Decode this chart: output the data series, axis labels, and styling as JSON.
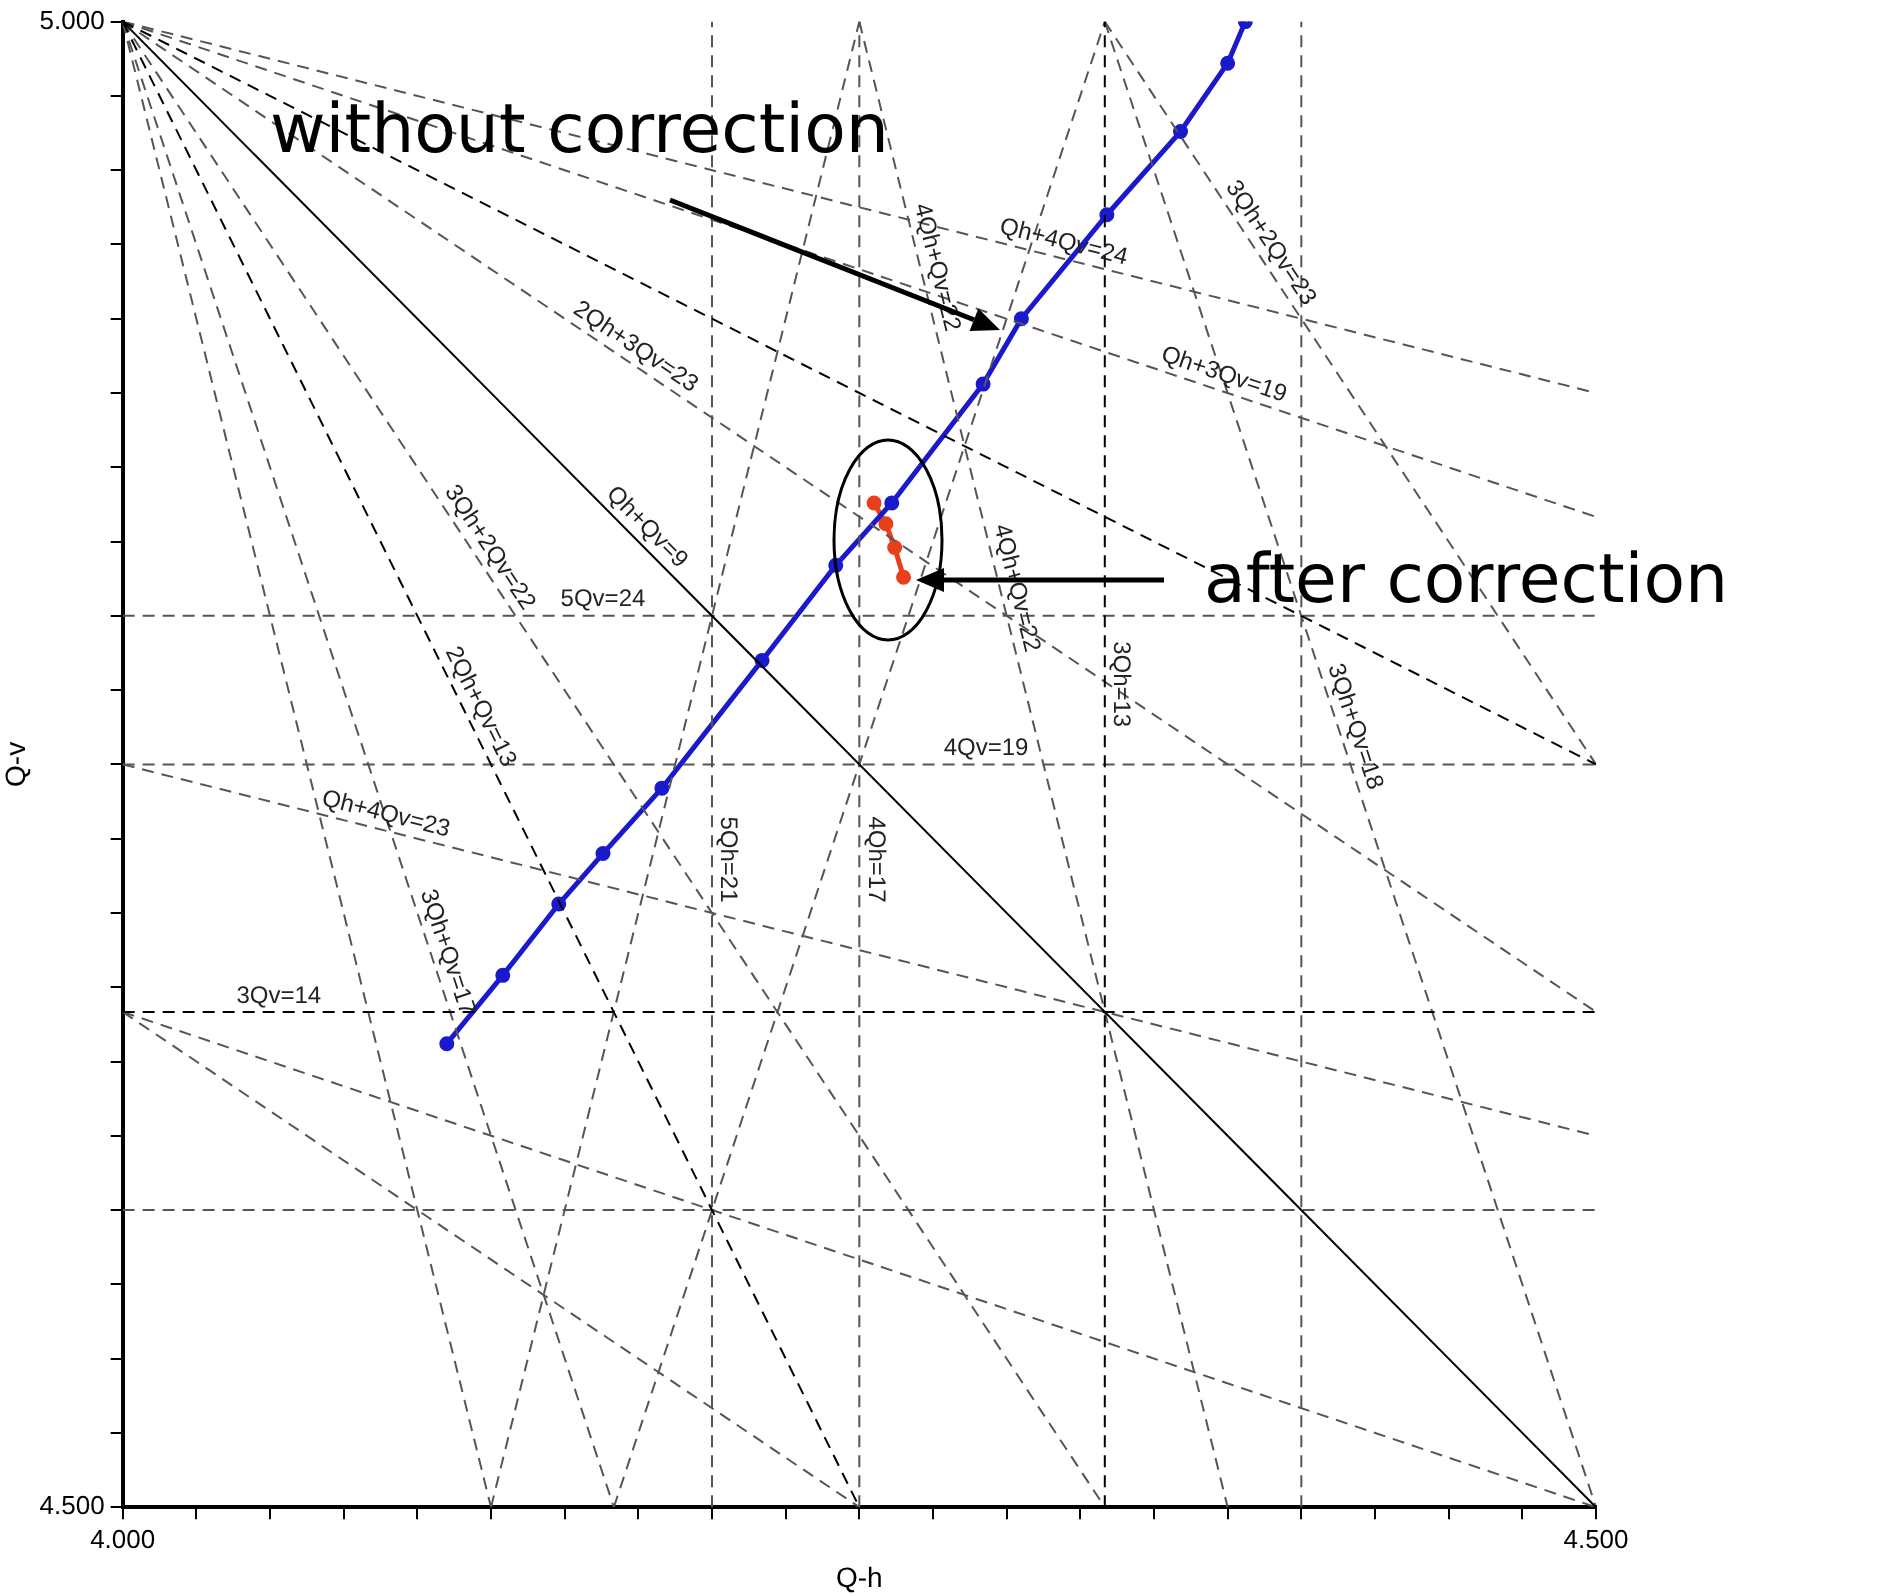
{
  "chart_data": {
    "type": "line",
    "xlabel": "Q-h",
    "ylabel": "Q-v",
    "xlim": [
      4,
      4.5
    ],
    "ylim": [
      4.5,
      5
    ],
    "xticks": [
      {
        "value": 4,
        "label": "4.000"
      },
      {
        "value": 4.025,
        "label": null
      },
      {
        "value": 4.05,
        "label": null
      },
      {
        "value": 4.075,
        "label": null
      },
      {
        "value": 4.1,
        "label": null
      },
      {
        "value": 4.125,
        "label": null
      },
      {
        "value": 4.15,
        "label": null
      },
      {
        "value": 4.175,
        "label": null
      },
      {
        "value": 4.2,
        "label": null
      },
      {
        "value": 4.225,
        "label": null
      },
      {
        "value": 4.25,
        "label": null
      },
      {
        "value": 4.275,
        "label": null
      },
      {
        "value": 4.3,
        "label": null
      },
      {
        "value": 4.325,
        "label": null
      },
      {
        "value": 4.35,
        "label": null
      },
      {
        "value": 4.375,
        "label": null
      },
      {
        "value": 4.4,
        "label": null
      },
      {
        "value": 4.425,
        "label": null
      },
      {
        "value": 4.45,
        "label": null
      },
      {
        "value": 4.475,
        "label": null
      },
      {
        "value": 4.5,
        "label": "4.500"
      }
    ],
    "yticks": [
      {
        "value": 4.5,
        "label": "4.500"
      },
      {
        "value": 4.525,
        "label": null
      },
      {
        "value": 4.55,
        "label": null
      },
      {
        "value": 4.575,
        "label": null
      },
      {
        "value": 4.6,
        "label": null
      },
      {
        "value": 4.625,
        "label": null
      },
      {
        "value": 4.65,
        "label": null
      },
      {
        "value": 4.675,
        "label": null
      },
      {
        "value": 4.7,
        "label": null
      },
      {
        "value": 4.725,
        "label": null
      },
      {
        "value": 4.75,
        "label": null
      },
      {
        "value": 4.775,
        "label": null
      },
      {
        "value": 4.8,
        "label": null
      },
      {
        "value": 4.825,
        "label": null
      },
      {
        "value": 4.85,
        "label": null
      },
      {
        "value": 4.875,
        "label": null
      },
      {
        "value": 4.9,
        "label": null
      },
      {
        "value": 4.925,
        "label": null
      },
      {
        "value": 4.95,
        "label": null
      },
      {
        "value": 4.975,
        "label": null
      },
      {
        "value": 5,
        "label": "5.000"
      }
    ],
    "grid": false,
    "legend": false,
    "series": [
      {
        "color": "#000000",
        "line_style": "solid",
        "marker": "none",
        "x": [
          4,
          4.5
        ],
        "values": [
          5,
          4.5
        ]
      },
      {
        "color": "#000000",
        "line_style": "dashed",
        "marker": "none",
        "x": [
          4,
          4.5
        ],
        "values": [
          5,
          4.75
        ]
      },
      {
        "color": "#000000",
        "line_style": "dashed",
        "marker": "none",
        "x": [
          4,
          4.25
        ],
        "values": [
          5,
          4.5
        ]
      },
      {
        "color": "#000000",
        "line_style": "dashed",
        "marker": "none",
        "x": [
          4,
          4.5
        ],
        "values": [
          4.6667,
          4.6667
        ]
      },
      {
        "color": "#000000",
        "line_style": "dashed",
        "marker": "none",
        "x": [
          4.3333,
          4.3333
        ],
        "values": [
          4.5,
          5
        ]
      },
      {
        "color": "#555555",
        "line_style": "dashed",
        "marker": "none",
        "x": [
          4,
          4.5
        ],
        "values": [
          5,
          4.875
        ]
      },
      {
        "color": "#555555",
        "line_style": "dashed",
        "marker": "none",
        "x": [
          4,
          4.5
        ],
        "values": [
          5,
          4.8333
        ]
      },
      {
        "color": "#555555",
        "line_style": "dashed",
        "marker": "none",
        "x": [
          4,
          4.5
        ],
        "values": [
          5,
          4.6667
        ]
      },
      {
        "color": "#555555",
        "line_style": "dashed",
        "marker": "none",
        "x": [
          4,
          4.3333
        ],
        "values": [
          5,
          4.5
        ]
      },
      {
        "color": "#555555",
        "line_style": "dashed",
        "marker": "none",
        "x": [
          4,
          4.1667
        ],
        "values": [
          5,
          4.5
        ]
      },
      {
        "color": "#555555",
        "line_style": "dashed",
        "marker": "none",
        "x": [
          4,
          4.125
        ],
        "values": [
          5,
          4.5
        ]
      },
      {
        "color": "#555555",
        "line_style": "dashed",
        "marker": "none",
        "x": [
          4.25,
          4.375
        ],
        "values": [
          5,
          4.5
        ]
      },
      {
        "color": "#555555",
        "line_style": "dashed",
        "marker": "none",
        "x": [
          4.125,
          4.25
        ],
        "values": [
          4.5,
          5
        ]
      },
      {
        "color": "#555555",
        "line_style": "dashed",
        "marker": "none",
        "x": [
          4.1667,
          4.3333
        ],
        "values": [
          4.5,
          5
        ]
      },
      {
        "color": "#555555",
        "line_style": "dashed",
        "marker": "none",
        "x": [
          4.3333,
          4.5
        ],
        "values": [
          5,
          4.75
        ]
      },
      {
        "color": "#555555",
        "line_style": "dashed",
        "marker": "none",
        "x": [
          4.3333,
          4.5
        ],
        "values": [
          5,
          4.5
        ]
      },
      {
        "color": "#555555",
        "line_style": "dashed",
        "marker": "none",
        "x": [
          4,
          4.5
        ],
        "values": [
          4.6667,
          4.5
        ]
      },
      {
        "color": "#555555",
        "line_style": "dashed",
        "marker": "none",
        "x": [
          4,
          4.25
        ],
        "values": [
          4.6667,
          4.5
        ]
      },
      {
        "color": "#555555",
        "line_style": "dashed",
        "marker": "none",
        "x": [
          4,
          4.5
        ],
        "values": [
          4.75,
          4.625
        ]
      },
      {
        "color": "#555555",
        "line_style": "dashed",
        "marker": "none",
        "x": [
          4,
          4.5
        ],
        "values": [
          4.8,
          4.8
        ]
      },
      {
        "color": "#555555",
        "line_style": "dashed",
        "marker": "none",
        "x": [
          4,
          4.5
        ],
        "values": [
          4.75,
          4.75
        ]
      },
      {
        "color": "#555555",
        "line_style": "dashed",
        "marker": "none",
        "x": [
          4,
          4.5
        ],
        "values": [
          4.6,
          4.6
        ]
      },
      {
        "color": "#555555",
        "line_style": "dashed",
        "marker": "none",
        "x": [
          4.2,
          4.2
        ],
        "values": [
          4.5,
          5
        ]
      },
      {
        "color": "#555555",
        "line_style": "dashed",
        "marker": "none",
        "x": [
          4.25,
          4.25
        ],
        "values": [
          4.5,
          5
        ]
      },
      {
        "color": "#555555",
        "line_style": "dashed",
        "marker": "none",
        "x": [
          4.4,
          4.4
        ],
        "values": [
          4.5,
          5
        ]
      },
      {
        "color": "#1a1acc",
        "line_style": "solid",
        "marker": "circle",
        "x": [
          4.11,
          4.129,
          4.148,
          4.163,
          4.183,
          4.217,
          4.242,
          4.261,
          4.292,
          4.305,
          4.334,
          4.359,
          4.375,
          4.381
        ],
        "values": [
          4.656,
          4.679,
          4.703,
          4.72,
          4.742,
          4.785,
          4.817,
          4.838,
          4.878,
          4.9,
          4.935,
          4.963,
          4.986,
          5.0
        ]
      },
      {
        "color": "#e8401c",
        "line_style": "solid",
        "marker": "circle",
        "x": [
          4.255,
          4.259,
          4.262,
          4.265
        ],
        "values": [
          4.838,
          4.831,
          4.823,
          4.813
        ]
      }
    ],
    "annotations": [
      "without correction",
      "after correction",
      {
        "text": "Qh+4Qv=24",
        "x": 4.318,
        "y": 4.9205
      },
      {
        "text": "4Qh+Qv=22",
        "x": 4.271,
        "y": 4.916
      },
      {
        "text": "3Qh+2Qv=23",
        "x": 4.385,
        "y": 4.9225
      },
      {
        "text": "2Qh+3Qv=23",
        "x": 4.171,
        "y": 4.886
      },
      {
        "text": "Qh+3Qv=19",
        "x": 4.372,
        "y": 4.876
      },
      {
        "text": "3Qh+2Qv=22",
        "x": 4.12,
        "y": 4.82
      },
      {
        "text": "Qh+Qv=9",
        "x": 4.174,
        "y": 4.826
      },
      {
        "text": "5Qv=24",
        "x": 4.163,
        "y": 4.8
      },
      {
        "text": "4Qh+Qv=22",
        "x": 4.298,
        "y": 4.808
      },
      {
        "text": "3Qh=13",
        "x": 4.3333,
        "y": 4.777
      },
      {
        "text": "2Qh+Qv=13",
        "x": 4.1165,
        "y": 4.767
      },
      {
        "text": "4Qv=19",
        "x": 4.293,
        "y": 4.75
      },
      {
        "text": "3Qh+Qv=18",
        "x": 4.413,
        "y": 4.761
      },
      {
        "text": "Qh+4Qv=23",
        "x": 4.088,
        "y": 4.728
      },
      {
        "text": "5Qh=21",
        "x": 4.2,
        "y": 4.718
      },
      {
        "text": "4Qh=17",
        "x": 4.25,
        "y": 4.718
      },
      {
        "text": "3Qh+Qv=17",
        "x": 4.105,
        "y": 4.685
      },
      {
        "text": "3Qv=14",
        "x": 4.053,
        "y": 4.6667
      }
    ]
  }
}
